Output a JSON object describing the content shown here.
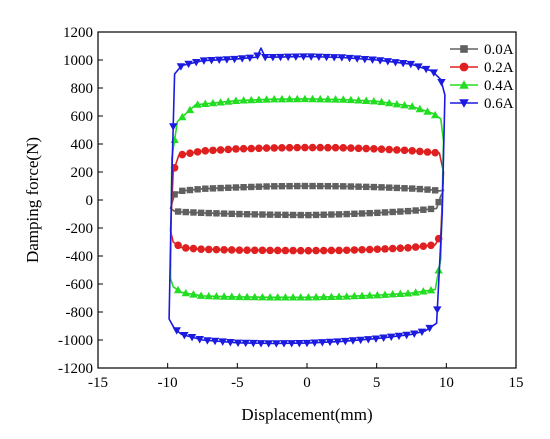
{
  "chart_data": {
    "type": "line",
    "xlabel": "Displacement(mm)",
    "ylabel": "Damping force(N)",
    "xlim": [
      -15,
      15
    ],
    "ylim": [
      -1200,
      1200
    ],
    "xticks": [
      -15,
      -10,
      -5,
      0,
      5,
      10,
      15
    ],
    "yticks": [
      -1200,
      -1000,
      -800,
      -600,
      -400,
      -200,
      0,
      200,
      400,
      600,
      800,
      1000,
      1200
    ],
    "grid": false,
    "legend_position": "top-right",
    "series": [
      {
        "name": "0.0A",
        "color": "#606060",
        "marker": "square",
        "upper": [
          [
            -9.8,
            -60
          ],
          [
            -9.5,
            40
          ],
          [
            -9.0,
            65
          ],
          [
            -7.5,
            80
          ],
          [
            -5,
            90
          ],
          [
            -2.5,
            98
          ],
          [
            0,
            100
          ],
          [
            2.5,
            98
          ],
          [
            5,
            92
          ],
          [
            7.5,
            82
          ],
          [
            9.0,
            72
          ],
          [
            9.5,
            65
          ],
          [
            9.8,
            70
          ]
        ],
        "lower": [
          [
            9.8,
            70
          ],
          [
            9.6,
            30
          ],
          [
            9.3,
            -60
          ],
          [
            7.5,
            -78
          ],
          [
            5,
            -92
          ],
          [
            2.5,
            -102
          ],
          [
            0,
            -108
          ],
          [
            -2.5,
            -105
          ],
          [
            -5,
            -100
          ],
          [
            -7.5,
            -92
          ],
          [
            -9.0,
            -85
          ],
          [
            -9.5,
            -80
          ],
          [
            -9.8,
            -60
          ]
        ]
      },
      {
        "name": "0.2A",
        "color": "#e02020",
        "marker": "circle",
        "upper": [
          [
            -9.8,
            -220
          ],
          [
            -9.6,
            200
          ],
          [
            -9.2,
            320
          ],
          [
            -7.5,
            350
          ],
          [
            -5,
            365
          ],
          [
            -2.5,
            372
          ],
          [
            0,
            375
          ],
          [
            2.5,
            373
          ],
          [
            5,
            365
          ],
          [
            7.5,
            352
          ],
          [
            9.0,
            340
          ],
          [
            9.5,
            335
          ],
          [
            9.8,
            200
          ]
        ],
        "lower": [
          [
            9.8,
            200
          ],
          [
            9.6,
            -250
          ],
          [
            9.2,
            -320
          ],
          [
            7.5,
            -340
          ],
          [
            5,
            -352
          ],
          [
            2.5,
            -360
          ],
          [
            0,
            -362
          ],
          [
            -2.5,
            -360
          ],
          [
            -5,
            -358
          ],
          [
            -7.5,
            -352
          ],
          [
            -9.0,
            -340
          ],
          [
            -9.6,
            -300
          ],
          [
            -9.8,
            -220
          ]
        ]
      },
      {
        "name": "0.4A",
        "color": "#22dd22",
        "marker": "triangle-up",
        "upper": [
          [
            -9.8,
            -560
          ],
          [
            -9.7,
            300
          ],
          [
            -9.3,
            560
          ],
          [
            -8.0,
            680
          ],
          [
            -5,
            710
          ],
          [
            -2.5,
            720
          ],
          [
            0,
            722
          ],
          [
            2.5,
            718
          ],
          [
            5,
            705
          ],
          [
            7.5,
            670
          ],
          [
            9.0,
            620
          ],
          [
            9.6,
            580
          ],
          [
            9.8,
            420
          ]
        ],
        "lower": [
          [
            9.8,
            420
          ],
          [
            9.6,
            -420
          ],
          [
            9.2,
            -640
          ],
          [
            7.5,
            -665
          ],
          [
            5,
            -680
          ],
          [
            2.5,
            -690
          ],
          [
            0,
            -695
          ],
          [
            -2.5,
            -695
          ],
          [
            -5,
            -692
          ],
          [
            -7.5,
            -685
          ],
          [
            -9.0,
            -660
          ],
          [
            -9.6,
            -620
          ],
          [
            -9.8,
            -560
          ]
        ]
      },
      {
        "name": "0.6A",
        "color": "#1a1ae0",
        "marker": "triangle-down",
        "upper": [
          [
            -9.9,
            -850
          ],
          [
            -9.7,
            150
          ],
          [
            -9.5,
            900
          ],
          [
            -9.0,
            960
          ],
          [
            -7.5,
            995
          ],
          [
            -5,
            1008
          ],
          [
            -3.6,
            1020
          ],
          [
            -3.3,
            1085
          ],
          [
            -3.0,
            1020
          ],
          [
            -2.5,
            1020
          ],
          [
            0,
            1025
          ],
          [
            2.5,
            1018
          ],
          [
            5,
            1000
          ],
          [
            7.5,
            970
          ],
          [
            9.0,
            920
          ],
          [
            9.6,
            860
          ],
          [
            9.9,
            750
          ]
        ],
        "lower": [
          [
            9.9,
            750
          ],
          [
            9.7,
            -100
          ],
          [
            9.3,
            -880
          ],
          [
            8.5,
            -935
          ],
          [
            7.5,
            -960
          ],
          [
            5,
            -990
          ],
          [
            2.5,
            -1010
          ],
          [
            0,
            -1022
          ],
          [
            -2.5,
            -1025
          ],
          [
            -5,
            -1020
          ],
          [
            -7.5,
            -1000
          ],
          [
            -9.0,
            -960
          ],
          [
            -9.5,
            -920
          ],
          [
            -9.9,
            -850
          ]
        ]
      }
    ]
  }
}
